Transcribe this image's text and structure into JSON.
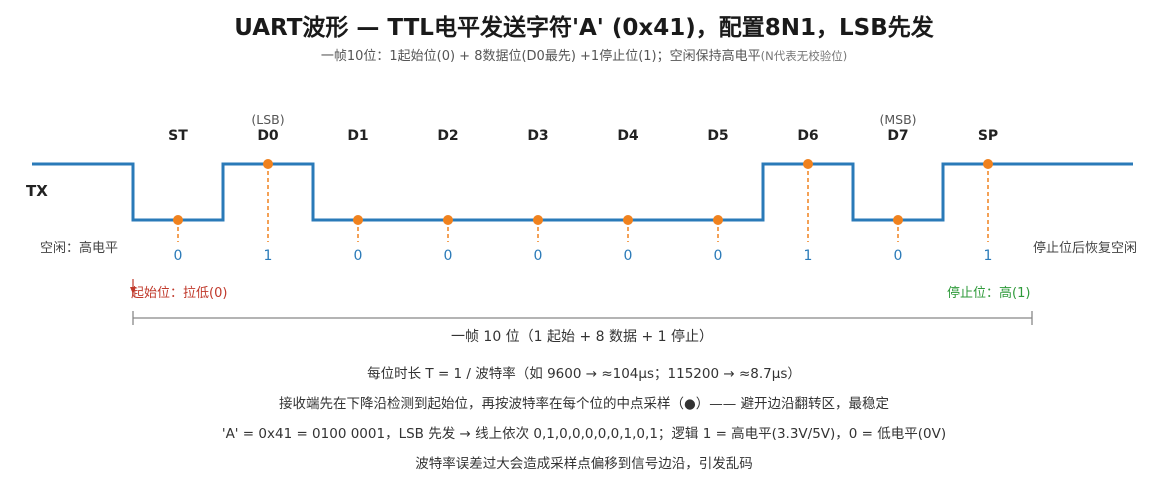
{
  "title": "UART波形 — TTL电平发送字符'A' (0x41)，配置8N1，LSB先发",
  "subtitle_main": "一帧10位：1起始位(0) + 8数据位(D0最先) +1停止位(1)；空闲保持高电平",
  "subtitle_note": "(N代表无校验位)",
  "signal_label": "TX",
  "bits": [
    {
      "name": "ST",
      "value": "0",
      "tag": ""
    },
    {
      "name": "D0",
      "value": "1",
      "tag": "(LSB)"
    },
    {
      "name": "D1",
      "value": "0",
      "tag": ""
    },
    {
      "name": "D2",
      "value": "0",
      "tag": ""
    },
    {
      "name": "D3",
      "value": "0",
      "tag": ""
    },
    {
      "name": "D4",
      "value": "0",
      "tag": ""
    },
    {
      "name": "D5",
      "value": "0",
      "tag": ""
    },
    {
      "name": "D6",
      "value": "1",
      "tag": ""
    },
    {
      "name": "D7",
      "value": "0",
      "tag": "(MSB)"
    },
    {
      "name": "SP",
      "value": "1",
      "tag": ""
    }
  ],
  "idle_left": "空闲：高电平",
  "idle_right": "停止位后恢复空闲",
  "start_note": "起始位：拉低(0)",
  "stop_note": "停止位：高(1)",
  "frame_label": "一帧 10 位（1 起始 + 8 数据 + 1 停止）",
  "notes": [
    "每位时长 T = 1 / 波特率（如 9600 → ≈104μs；115200 → ≈8.7μs）",
    "接收端先在下降沿检测到起始位，再按波特率在每个位的中点采样（●）—— 避开边沿翻转区，最稳定",
    "'A' = 0x41 = 0100 0001，LSB 先发 → 线上依次 0,1,0,0,0,0,0,1,0,1；逻辑 1 = 高电平(3.3V/5V)，0 = 低电平(0V)",
    "波特率误差过大会造成采样点偏移到信号边沿，引发乱码"
  ],
  "colors": {
    "wave": "#2a7ab8",
    "sample": "#f0821e",
    "value_text": "#2a7ab8",
    "start_note": "#c0392b",
    "stop_note": "#2e9a3a",
    "bracket": "#888888"
  }
}
